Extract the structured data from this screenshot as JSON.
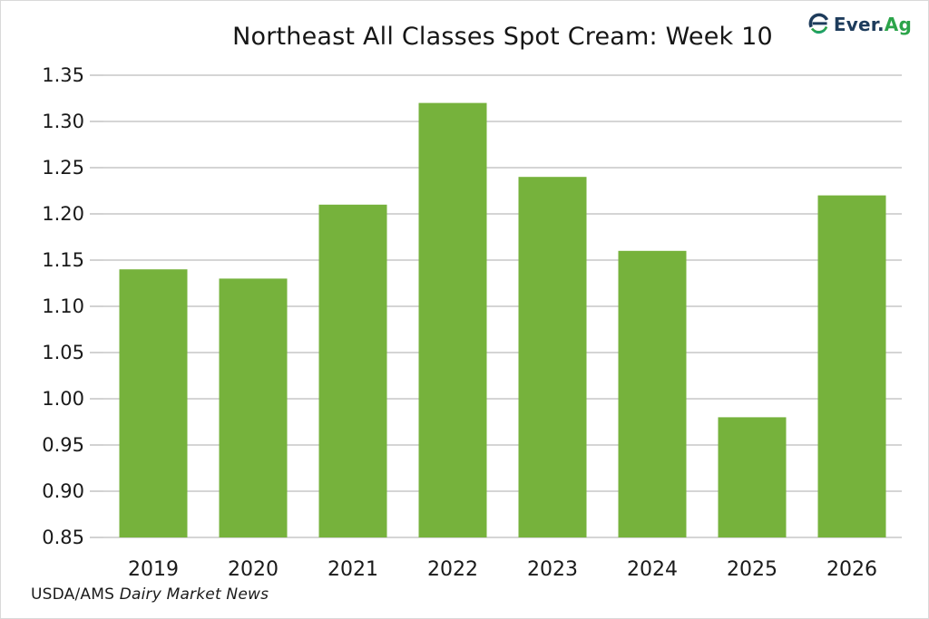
{
  "header": {
    "title": "Northeast All Classes Spot Cream: Week 10",
    "logo": {
      "brand_prefix": "Ever.",
      "brand_suffix": "Ag",
      "navy_color": "#1E3C5C",
      "green_color": "#2CA44A"
    }
  },
  "chart_data": {
    "type": "bar",
    "title": "Northeast All Classes Spot Cream: Week 10",
    "categories": [
      "2019",
      "2020",
      "2021",
      "2022",
      "2023",
      "2024",
      "2025",
      "2026"
    ],
    "values": [
      1.14,
      1.13,
      1.21,
      1.32,
      1.24,
      1.16,
      0.98,
      1.22
    ],
    "xlabel": "",
    "ylabel": "",
    "ylim": [
      0.85,
      1.35
    ],
    "y_tick_labels": [
      "0.85",
      "0.90",
      "0.95",
      "1.00",
      "1.05",
      "1.10",
      "1.15",
      "1.20",
      "1.25",
      "1.30",
      "1.35"
    ],
    "grid": true,
    "legend": false,
    "bar_color": "#76B23C",
    "grid_color": "#C7C7C7",
    "text_color": "#1A1A1A"
  },
  "footer": {
    "source_plain": "USDA/AMS",
    "source_italic": "Dairy Market News"
  }
}
